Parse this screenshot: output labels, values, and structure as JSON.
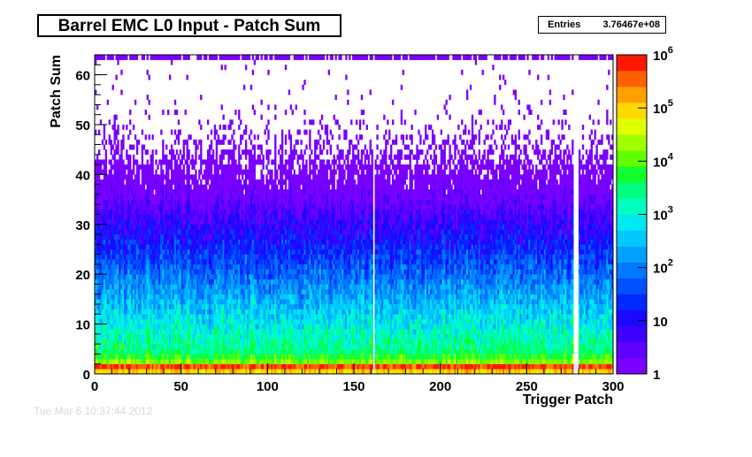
{
  "chart_data": {
    "type": "heatmap",
    "title": "Barrel EMC L0 Input - Patch Sum",
    "stats": {
      "label": "Entries",
      "value": "3.76467e+08"
    },
    "xlabel": "Trigger Patch",
    "ylabel": "Patch Sum",
    "xlim": [
      0,
      300
    ],
    "ylim": [
      0,
      64
    ],
    "x_ticks": [
      "0",
      "50",
      "100",
      "150",
      "200",
      "250",
      "300"
    ],
    "y_ticks": [
      "0",
      "10",
      "20",
      "30",
      "40",
      "50",
      "60"
    ],
    "z_scale": "log",
    "zlim": [
      1,
      1000000
    ],
    "z_ticks": [
      {
        "base": "1",
        "exp": ""
      },
      {
        "base": "10",
        "exp": ""
      },
      {
        "base": "10",
        "exp": "2"
      },
      {
        "base": "10",
        "exp": "3"
      },
      {
        "base": "10",
        "exp": "4"
      },
      {
        "base": "10",
        "exp": "5"
      },
      {
        "base": "10",
        "exp": "6"
      }
    ],
    "empty_columns": [
      161,
      277,
      278,
      279
    ],
    "distribution": "counts peak near Patch Sum 0-2 (about 1e5-1e6) and fall off to single counts above ~40; an overflow row of counts at Patch Sum 63"
  },
  "footer_text": "Tue Mar  6 10:37:44 2012"
}
